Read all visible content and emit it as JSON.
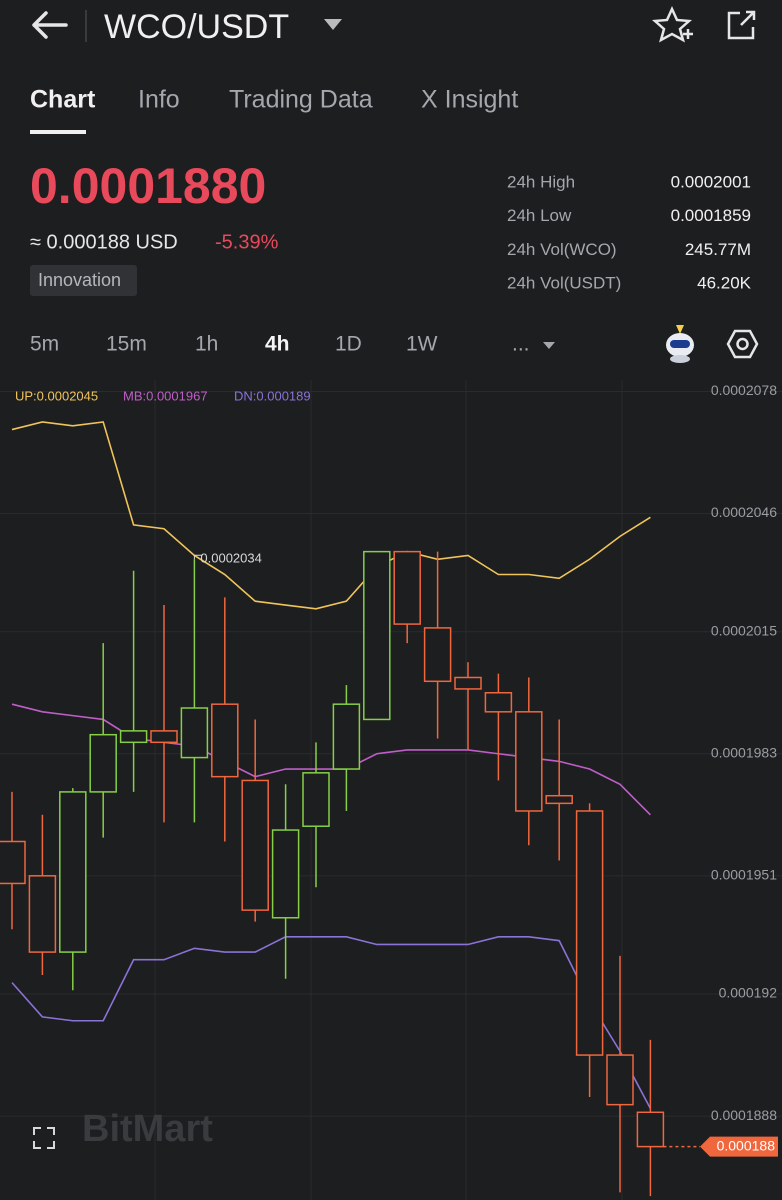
{
  "header": {
    "pair": "WCO/USDT"
  },
  "tabs": [
    "Chart",
    "Info",
    "Trading Data",
    "X Insight"
  ],
  "price": {
    "last": "0.0001880",
    "usd": "≈ 0.000188 USD",
    "change": "-5.39%",
    "badge": "Innovation"
  },
  "stats": [
    {
      "label": "24h High",
      "value": "0.0002001"
    },
    {
      "label": "24h Low",
      "value": "0.0001859"
    },
    {
      "label": "24h Vol(WCO)",
      "value": "245.77M"
    },
    {
      "label": "24h Vol(USDT)",
      "value": "46.20K"
    }
  ],
  "timeframes": [
    "5m",
    "15m",
    "1h",
    "4h",
    "1D",
    "1W",
    "..."
  ],
  "watermark": "BitMart",
  "chart_data": {
    "type": "candlestick",
    "categories": [
      null,
      null,
      null,
      null,
      null,
      null,
      null,
      null,
      null,
      null,
      null,
      null,
      null,
      null,
      null,
      null,
      null,
      null,
      null,
      null,
      null,
      null
    ],
    "open": [
      0.000196,
      0.0001951,
      0.0001931,
      0.0001973,
      0.0001986,
      0.0001989,
      0.0001982,
      0.0001996,
      0.0001976,
      0.000194,
      0.0001964,
      0.0001979,
      0.0001992,
      0.0002036,
      0.0002016,
      0.0002003,
      0.0001999,
      0.0001994,
      0.0001972,
      0.0001968,
      0.0001904,
      0.0001889
    ],
    "high": [
      0.0001973,
      0.0001967,
      0.0001974,
      0.0002012,
      0.0002031,
      0.0002022,
      0.0002034,
      0.0002024,
      0.0001992,
      0.0001975,
      0.0001986,
      0.0002001,
      0.0002036,
      0.0002036,
      0.0002036,
      0.0002007,
      0.0002004,
      0.0002003,
      0.0001992,
      0.000197,
      0.000193,
      0.0001908
    ],
    "low": [
      0.0001937,
      0.0001925,
      0.0001921,
      0.0001961,
      0.0001973,
      0.0001965,
      0.0001965,
      0.000196,
      0.0001939,
      0.0001924,
      0.0001948,
      0.0001968,
      0.0001992,
      0.0002012,
      0.0001987,
      0.0001984,
      0.0001976,
      0.0001959,
      0.0001955,
      0.0001893,
      0.0001868,
      0.0001867
    ],
    "close": [
      0.0001949,
      0.0001931,
      0.0001973,
      0.0001988,
      0.0001989,
      0.0001986,
      0.0001995,
      0.0001977,
      0.0001942,
      0.0001963,
      0.0001978,
      0.0001996,
      0.0002036,
      0.0002017,
      0.0002002,
      0.0002,
      0.0001994,
      0.0001968,
      0.000197,
      0.0001904,
      0.0001891,
      0.000188
    ],
    "up_color": "#86cf47",
    "down_color": "#f0673d",
    "series": [
      {
        "name": "UP:0.0002045",
        "color": "#f0c45a",
        "values": [
          0.0002068,
          0.000207,
          0.0002069,
          0.000207,
          0.0002043,
          0.0002042,
          0.0002035,
          0.000203,
          0.0002023,
          0.0002022,
          0.0002021,
          0.0002023,
          0.0002032,
          0.0002036,
          0.0002034,
          0.0002035,
          0.000203,
          0.000203,
          0.0002029,
          0.0002034,
          0.000204,
          0.0002045
        ]
      },
      {
        "name": "MB:0.0001967",
        "color": "#c05ec8",
        "values": [
          0.0001996,
          0.0001994,
          0.0001993,
          0.0001992,
          0.0001987,
          0.0001986,
          0.0001985,
          0.0001981,
          0.0001977,
          0.0001979,
          0.0001979,
          0.0001979,
          0.0001983,
          0.0001984,
          0.0001984,
          0.0001984,
          0.0001983,
          0.0001982,
          0.0001981,
          0.0001979,
          0.0001975,
          0.0001967
        ]
      },
      {
        "name": "DN:0.000189",
        "color": "#8b72d6",
        "values": [
          0.0001923,
          0.0001914,
          0.0001913,
          0.0001913,
          0.0001929,
          0.0001929,
          0.0001932,
          0.0001931,
          0.0001931,
          0.0001935,
          0.0001935,
          0.0001935,
          0.0001933,
          0.0001933,
          0.0001933,
          0.0001933,
          0.0001935,
          0.0001935,
          0.0001934,
          0.0001918,
          0.0001905,
          0.000189
        ]
      }
    ],
    "ylim": [
      0.0001866,
      0.0002081
    ],
    "yticks": [
      0.0002078,
      0.0002046,
      0.0002015,
      0.0001983,
      0.0001951,
      0.000192,
      0.0001888
    ],
    "grid": true
  }
}
